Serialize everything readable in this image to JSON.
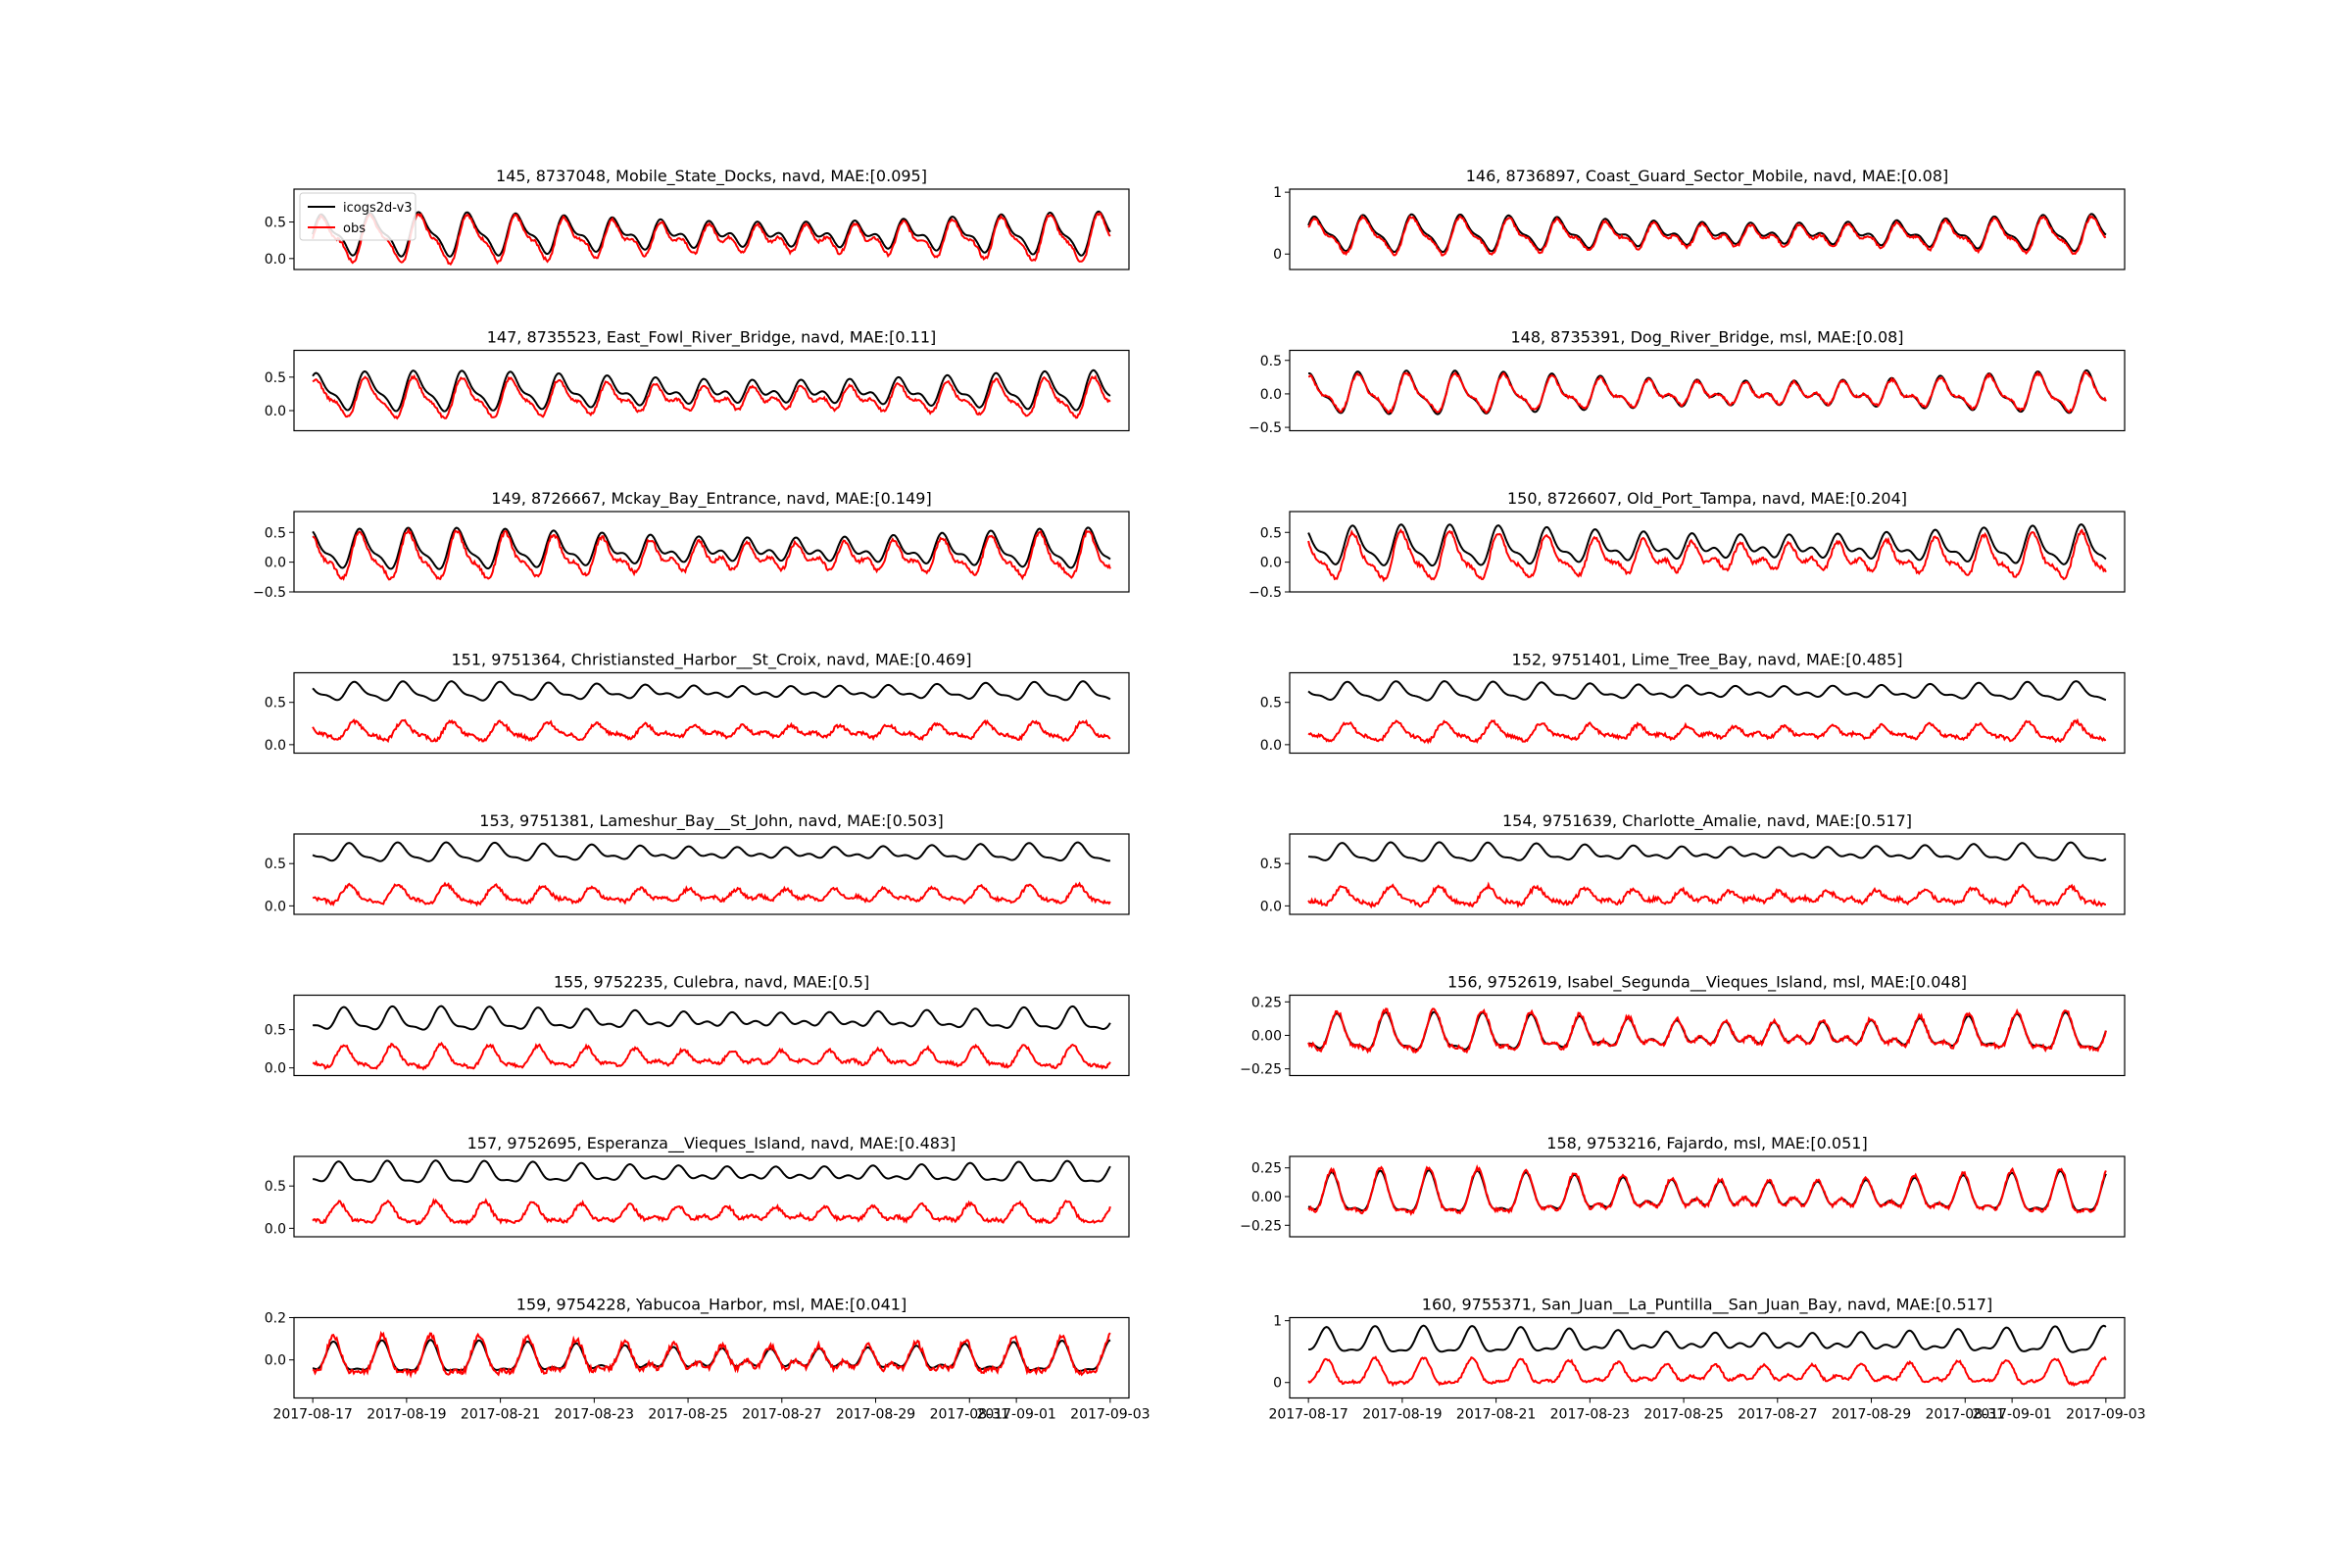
{
  "chart_data": {
    "type": "line",
    "legend": {
      "placement": "top-left",
      "entries": [
        "icogs2d-v3",
        "obs"
      ]
    },
    "colors": {
      "model": "#000000",
      "obs": "#ff0000"
    },
    "x_tick_labels": [
      "2017-08-17",
      "2017-08-19",
      "2017-08-21",
      "2017-08-23",
      "2017-08-25",
      "2017-08-27",
      "2017-08-29",
      "2017-08-31",
      "2017-09-01",
      "2017-09-03"
    ],
    "xlim": [
      "2017-08-17",
      "2017-09-03"
    ],
    "panels": [
      {
        "title": "145, 8737048, Mobile_State_Docks, navd, MAE:[0.095]",
        "ylim": [
          -0.15,
          0.95
        ],
        "yticks": [
          "0.0",
          "0.5"
        ],
        "ytick_values": [
          0,
          0.5
        ],
        "model": {
          "mean": 0.33,
          "amp": 0.26
        },
        "obs": {
          "offset": -0.06,
          "scale": 1.1,
          "noise": 0.02
        }
      },
      {
        "title": "146, 8736897, Coast_Guard_Sector_Mobile, navd, MAE:[0.08]",
        "ylim": [
          -0.25,
          1.05
        ],
        "yticks": [
          "0",
          "1"
        ],
        "ytick_values": [
          0,
          1
        ],
        "model": {
          "mean": 0.33,
          "amp": 0.26
        },
        "obs": {
          "offset": -0.04,
          "scale": 1.0,
          "noise": 0.02
        }
      },
      {
        "title": "147, 8735523, East_Fowl_River_Bridge, navd, MAE:[0.11]",
        "ylim": [
          -0.3,
          0.9
        ],
        "yticks": [
          "0.0",
          "0.5"
        ],
        "ytick_values": [
          0,
          0.5
        ],
        "model": {
          "mean": 0.28,
          "amp": 0.26
        },
        "obs": {
          "offset": -0.1,
          "scale": 1.0,
          "noise": 0.02
        }
      },
      {
        "title": "148, 8735391, Dog_River_Bridge, msl, MAE:[0.08]",
        "ylim": [
          -0.55,
          0.65
        ],
        "yticks": [
          "−0.5",
          "0.0",
          "0.5"
        ],
        "ytick_values": [
          -0.5,
          0,
          0.5
        ],
        "model": {
          "mean": 0.0,
          "amp": 0.28
        },
        "obs": {
          "offset": 0.0,
          "scale": 0.9,
          "noise": 0.02
        }
      },
      {
        "title": "149, 8726667, Mckay_Bay_Entrance, navd, MAE:[0.149]",
        "ylim": [
          -0.5,
          0.85
        ],
        "yticks": [
          "−0.5",
          "0.0",
          "0.5"
        ],
        "ytick_values": [
          -0.5,
          0,
          0.5
        ],
        "model": {
          "mean": 0.2,
          "amp": 0.3
        },
        "obs": {
          "offset": -0.12,
          "scale": 1.15,
          "noise": 0.03
        }
      },
      {
        "title": "150, 8726607, Old_Port_Tampa, navd, MAE:[0.204]",
        "ylim": [
          -0.5,
          0.85
        ],
        "yticks": [
          "−0.5",
          "0.0",
          "0.5"
        ],
        "ytick_values": [
          -0.5,
          0,
          0.5
        ],
        "model": {
          "mean": 0.25,
          "amp": 0.3
        },
        "obs": {
          "offset": -0.18,
          "scale": 1.15,
          "noise": 0.03
        }
      },
      {
        "title": "151, 9751364, Christiansted_Harbor__St_Croix, navd, MAE:[0.469]",
        "ylim": [
          -0.1,
          0.85
        ],
        "yticks": [
          "0.0",
          "0.5"
        ],
        "ytick_values": [
          0,
          0.5
        ],
        "model": {
          "mean": 0.62,
          "amp": 0.1
        },
        "obs": {
          "offset": -0.47,
          "scale": 1.0,
          "noise": 0.02
        }
      },
      {
        "title": "152, 9751401, Lime_Tree_Bay, navd, MAE:[0.485]",
        "ylim": [
          -0.1,
          0.85
        ],
        "yticks": [
          "0.0",
          "0.5"
        ],
        "ytick_values": [
          0,
          0.5
        ],
        "model": {
          "mean": 0.62,
          "amp": 0.1
        },
        "obs": {
          "offset": -0.48,
          "scale": 1.0,
          "noise": 0.02
        }
      },
      {
        "title": "153, 9751381, Lameshur_Bay__St_John, navd, MAE:[0.503]",
        "ylim": [
          -0.1,
          0.85
        ],
        "yticks": [
          "0.0",
          "0.5"
        ],
        "ytick_values": [
          0,
          0.5
        ],
        "model": {
          "mean": 0.62,
          "amp": 0.1
        },
        "obs": {
          "offset": -0.5,
          "scale": 1.0,
          "noise": 0.02
        }
      },
      {
        "title": "154, 9751639, Charlotte_Amalie, navd, MAE:[0.517]",
        "ylim": [
          -0.1,
          0.85
        ],
        "yticks": [
          "0.0",
          "0.5"
        ],
        "ytick_values": [
          0,
          0.5
        ],
        "model": {
          "mean": 0.62,
          "amp": 0.1
        },
        "obs": {
          "offset": -0.52,
          "scale": 1.0,
          "noise": 0.025
        }
      },
      {
        "title": "155, 9752235, Culebra, navd, MAE:[0.5]",
        "ylim": [
          -0.1,
          0.95
        ],
        "yticks": [
          "0.0",
          "0.5"
        ],
        "ytick_values": [
          0,
          0.5
        ],
        "model": {
          "mean": 0.62,
          "amp": 0.14
        },
        "obs": {
          "offset": -0.5,
          "scale": 1.0,
          "noise": 0.02
        }
      },
      {
        "title": "156, 9752619, Isabel_Segunda__Vieques_Island, msl, MAE:[0.048]",
        "ylim": [
          -0.3,
          0.3
        ],
        "yticks": [
          "−0.25",
          "0.00",
          "0.25"
        ],
        "ytick_values": [
          -0.25,
          0,
          0.25
        ],
        "model": {
          "mean": 0.0,
          "amp": 0.13
        },
        "obs": {
          "offset": 0.0,
          "scale": 1.1,
          "noise": 0.015
        }
      },
      {
        "title": "157, 9752695, Esperanza__Vieques_Island, navd, MAE:[0.483]",
        "ylim": [
          -0.1,
          0.85
        ],
        "yticks": [
          "0.0",
          "0.5"
        ],
        "ytick_values": [
          0,
          0.5
        ],
        "model": {
          "mean": 0.64,
          "amp": 0.12
        },
        "obs": {
          "offset": -0.48,
          "scale": 1.0,
          "noise": 0.02
        }
      },
      {
        "title": "158, 9753216, Fajardo, msl, MAE:[0.051]",
        "ylim": [
          -0.35,
          0.35
        ],
        "yticks": [
          "−0.25",
          "0.00",
          "0.25"
        ],
        "ytick_values": [
          -0.25,
          0,
          0.25
        ],
        "model": {
          "mean": 0.0,
          "amp": 0.17
        },
        "obs": {
          "offset": 0.0,
          "scale": 1.1,
          "noise": 0.015
        }
      },
      {
        "title": "159, 9754228, Yabucoa_Harbor, msl, MAE:[0.041]",
        "ylim": [
          -0.18,
          0.2
        ],
        "yticks": [
          "0.0",
          "0.2"
        ],
        "ytick_values": [
          0,
          0.2
        ],
        "model": {
          "mean": 0.0,
          "amp": 0.07
        },
        "obs": {
          "offset": 0.0,
          "scale": 1.25,
          "noise": 0.012
        }
      },
      {
        "title": "160, 9755371, San_Juan__La_Puntilla__San_Juan_Bay, navd, MAE:[0.517]",
        "ylim": [
          -0.25,
          1.05
        ],
        "yticks": [
          "0",
          "1"
        ],
        "ytick_values": [
          0,
          1
        ],
        "model": {
          "mean": 0.65,
          "amp": 0.2
        },
        "obs": {
          "offset": -0.52,
          "scale": 1.0,
          "noise": 0.02
        }
      }
    ]
  }
}
